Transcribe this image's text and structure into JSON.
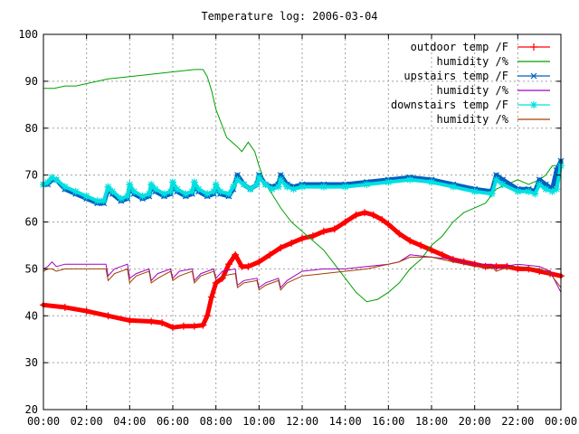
{
  "chart_data": {
    "type": "line",
    "title": "Temperature log: 2006-03-04",
    "xlabel": "",
    "ylabel": "",
    "x_ticks": [
      "00:00",
      "02:00",
      "04:00",
      "06:00",
      "08:00",
      "10:00",
      "12:00",
      "14:00",
      "16:00",
      "18:00",
      "20:00",
      "22:00",
      "00:00"
    ],
    "xlim": [
      0,
      24
    ],
    "ylim": [
      20,
      100
    ],
    "y_ticks": [
      20,
      30,
      40,
      50,
      60,
      70,
      80,
      90,
      100
    ],
    "grid": true,
    "legend_position": "top-right",
    "series": [
      {
        "name": "outdoor temp /F",
        "color": "#ff0000",
        "marker": "plus",
        "style": "thick",
        "x": [
          0,
          1,
          2,
          3,
          4,
          5,
          5.5,
          6,
          6.5,
          7,
          7.4,
          7.6,
          7.8,
          8,
          8.3,
          8.6,
          8.9,
          9.2,
          9.5,
          10,
          10.5,
          11,
          11.5,
          12,
          12.5,
          13,
          13.5,
          14,
          14.5,
          14.9,
          15.3,
          15.7,
          16,
          16.5,
          17,
          17.5,
          18,
          18.5,
          19,
          19.5,
          20,
          20.5,
          21,
          21.5,
          22,
          22.5,
          23,
          23.5,
          24
        ],
        "y": [
          42.3,
          41.8,
          41,
          40,
          39,
          38.8,
          38.5,
          37.5,
          37.8,
          37.8,
          38,
          40,
          44,
          47,
          48,
          51,
          53,
          50.5,
          50.5,
          51.5,
          53,
          54.5,
          55.5,
          56.5,
          57,
          58,
          58.5,
          60,
          61.5,
          62,
          61.5,
          60.5,
          59.5,
          57.5,
          56,
          55,
          54,
          53,
          52,
          51.5,
          51,
          50.5,
          50.5,
          50.5,
          50,
          50,
          49.5,
          49,
          48.5
        ]
      },
      {
        "name": "humidity /%",
        "color": "#00a000",
        "marker": "none",
        "style": "thin",
        "x": [
          0,
          0.5,
          1,
          1.5,
          2,
          3,
          4,
          5,
          6,
          7,
          7.4,
          7.6,
          7.8,
          8,
          8.5,
          9,
          9.2,
          9.5,
          9.8,
          10,
          10.3,
          10.6,
          11,
          11.5,
          12,
          12.5,
          13,
          13.5,
          14,
          14.5,
          15,
          15.5,
          16,
          16.5,
          17,
          17.5,
          18,
          18.5,
          19,
          19.5,
          20,
          20.5,
          21,
          21.5,
          22,
          22.5,
          23,
          23.3,
          23.6,
          24
        ],
        "y": [
          88.5,
          88.5,
          89,
          89,
          89.5,
          90.5,
          91,
          91.5,
          92,
          92.5,
          92.5,
          91,
          88,
          84,
          78,
          76,
          75,
          77,
          75,
          72,
          68,
          66,
          63,
          60,
          58,
          56,
          54,
          51,
          48,
          45,
          43,
          43.5,
          45,
          47,
          50,
          52,
          55,
          57,
          60,
          62,
          63,
          64,
          67,
          68,
          69,
          68,
          69,
          70,
          72,
          72
        ]
      },
      {
        "name": "upstairs temp /F",
        "color": "#0060c0",
        "marker": "x",
        "style": "thick",
        "x": [
          0,
          0.2,
          0.4,
          0.6,
          1,
          1.5,
          2,
          2.5,
          2.8,
          3,
          3.2,
          3.6,
          3.9,
          4,
          4.2,
          4.6,
          4.9,
          5,
          5.2,
          5.6,
          5.9,
          6,
          6.2,
          6.6,
          6.9,
          7,
          7.2,
          7.6,
          7.9,
          8,
          8.2,
          8.6,
          8.8,
          9,
          9.3,
          9.6,
          9.9,
          10,
          10.3,
          10.6,
          10.9,
          11,
          11.3,
          11.6,
          12,
          13,
          14,
          15,
          16,
          17,
          18,
          19,
          20,
          20.8,
          21,
          21.3,
          22,
          22.5,
          22.8,
          23,
          23.3,
          23.6,
          23.8,
          24
        ],
        "y": [
          68,
          68,
          69,
          69,
          67,
          66,
          65,
          64,
          64,
          67,
          66,
          64.5,
          65,
          67.5,
          66,
          65,
          65.5,
          67.5,
          66.5,
          65.5,
          66,
          68,
          66.5,
          65.5,
          66,
          68,
          66.5,
          65.5,
          66,
          67.5,
          66,
          65.5,
          67,
          70,
          68,
          67,
          68,
          70,
          68,
          67.5,
          68,
          70,
          68,
          67.5,
          68,
          68,
          68,
          68.5,
          69,
          69.5,
          69,
          68,
          67,
          66.5,
          70,
          69,
          67,
          67,
          66.5,
          69,
          68,
          67,
          71,
          73
        ]
      },
      {
        "name": "humidity /%",
        "color": "#a000c0",
        "marker": "none",
        "style": "thin",
        "x": [
          0,
          0.2,
          0.4,
          0.6,
          1,
          2,
          2.9,
          3,
          3.3,
          3.9,
          4,
          4.3,
          4.9,
          5,
          5.3,
          5.9,
          6,
          6.3,
          6.9,
          7,
          7.3,
          7.9,
          8,
          8.3,
          8.9,
          9,
          9.3,
          9.9,
          10,
          10.3,
          10.9,
          11,
          11.3,
          12,
          13,
          14,
          15,
          16,
          16.5,
          17,
          18,
          19,
          20,
          20.8,
          21,
          21.3,
          22,
          23,
          23.5,
          24
        ],
        "y": [
          50,
          50.5,
          51.5,
          50.5,
          51,
          51,
          51,
          48.5,
          50,
          51,
          48,
          49,
          50,
          47.5,
          49,
          50,
          48,
          49.5,
          50,
          47.5,
          49,
          50,
          48,
          49.5,
          50,
          46.5,
          47.5,
          48,
          46,
          47,
          48,
          46,
          47.5,
          49.5,
          50,
          50,
          50.5,
          51,
          51.5,
          53,
          52.5,
          52,
          51,
          51,
          50,
          50.5,
          51,
          50.5,
          49.5,
          45
        ]
      },
      {
        "name": "downstairs temp /F",
        "color": "#00e0e0",
        "marker": "star",
        "style": "med",
        "x": [
          0,
          0.2,
          0.4,
          0.6,
          1,
          1.5,
          2,
          2.5,
          2.8,
          3,
          3.2,
          3.6,
          3.9,
          4,
          4.2,
          4.6,
          4.9,
          5,
          5.2,
          5.6,
          5.9,
          6,
          6.2,
          6.6,
          6.9,
          7,
          7.2,
          7.6,
          7.9,
          8,
          8.2,
          8.6,
          8.8,
          9,
          9.3,
          9.6,
          9.9,
          10,
          10.3,
          10.6,
          10.9,
          11,
          11.3,
          11.6,
          12,
          13,
          14,
          15,
          16,
          17,
          18,
          19,
          20,
          20.8,
          21,
          21.3,
          22,
          22.5,
          22.8,
          23,
          23.3,
          23.6,
          23.8,
          24
        ],
        "y": [
          68,
          68.5,
          69.5,
          69,
          67.5,
          66.5,
          65.5,
          64.5,
          64.5,
          67.5,
          66.5,
          65,
          65.5,
          68,
          66.5,
          65.5,
          66,
          68,
          67,
          66,
          66.5,
          68.5,
          67,
          66,
          66.5,
          68.5,
          67,
          66,
          66.5,
          68,
          66.5,
          66,
          67.5,
          69,
          68,
          67,
          68,
          69.5,
          68,
          67,
          67.5,
          69,
          67.5,
          67,
          67.5,
          67.5,
          67.5,
          68,
          68.5,
          69,
          68.5,
          67.5,
          66.5,
          66,
          69,
          68,
          66.5,
          66.5,
          66,
          68,
          67,
          66.5,
          67,
          72
        ]
      },
      {
        "name": "humidity /%",
        "color": "#a04000",
        "marker": "none",
        "style": "thin",
        "x": [
          0,
          0.2,
          0.4,
          0.6,
          1,
          2,
          2.9,
          3,
          3.3,
          3.9,
          4,
          4.3,
          4.9,
          5,
          5.3,
          5.9,
          6,
          6.3,
          6.9,
          7,
          7.3,
          7.9,
          8,
          8.3,
          8.9,
          9,
          9.3,
          9.9,
          10,
          10.3,
          10.9,
          11,
          11.3,
          12,
          13,
          14,
          15,
          16,
          16.5,
          17,
          18,
          19,
          20,
          20.8,
          21,
          21.3,
          22,
          23,
          23.5,
          24
        ],
        "y": [
          49.5,
          50,
          50,
          49.5,
          50,
          50,
          50,
          47.5,
          49,
          50,
          47,
          48.5,
          49.5,
          47,
          48,
          49.5,
          47.5,
          48.5,
          49.5,
          47,
          48.5,
          49.5,
          47.5,
          48.5,
          49,
          46,
          47,
          47.5,
          45.5,
          46.5,
          47.5,
          45.5,
          47,
          48.5,
          49,
          49.5,
          50,
          51,
          51.5,
          52.5,
          52.5,
          51.5,
          50.5,
          50.5,
          49.5,
          50,
          50.5,
          50,
          49,
          46
        ]
      }
    ]
  }
}
